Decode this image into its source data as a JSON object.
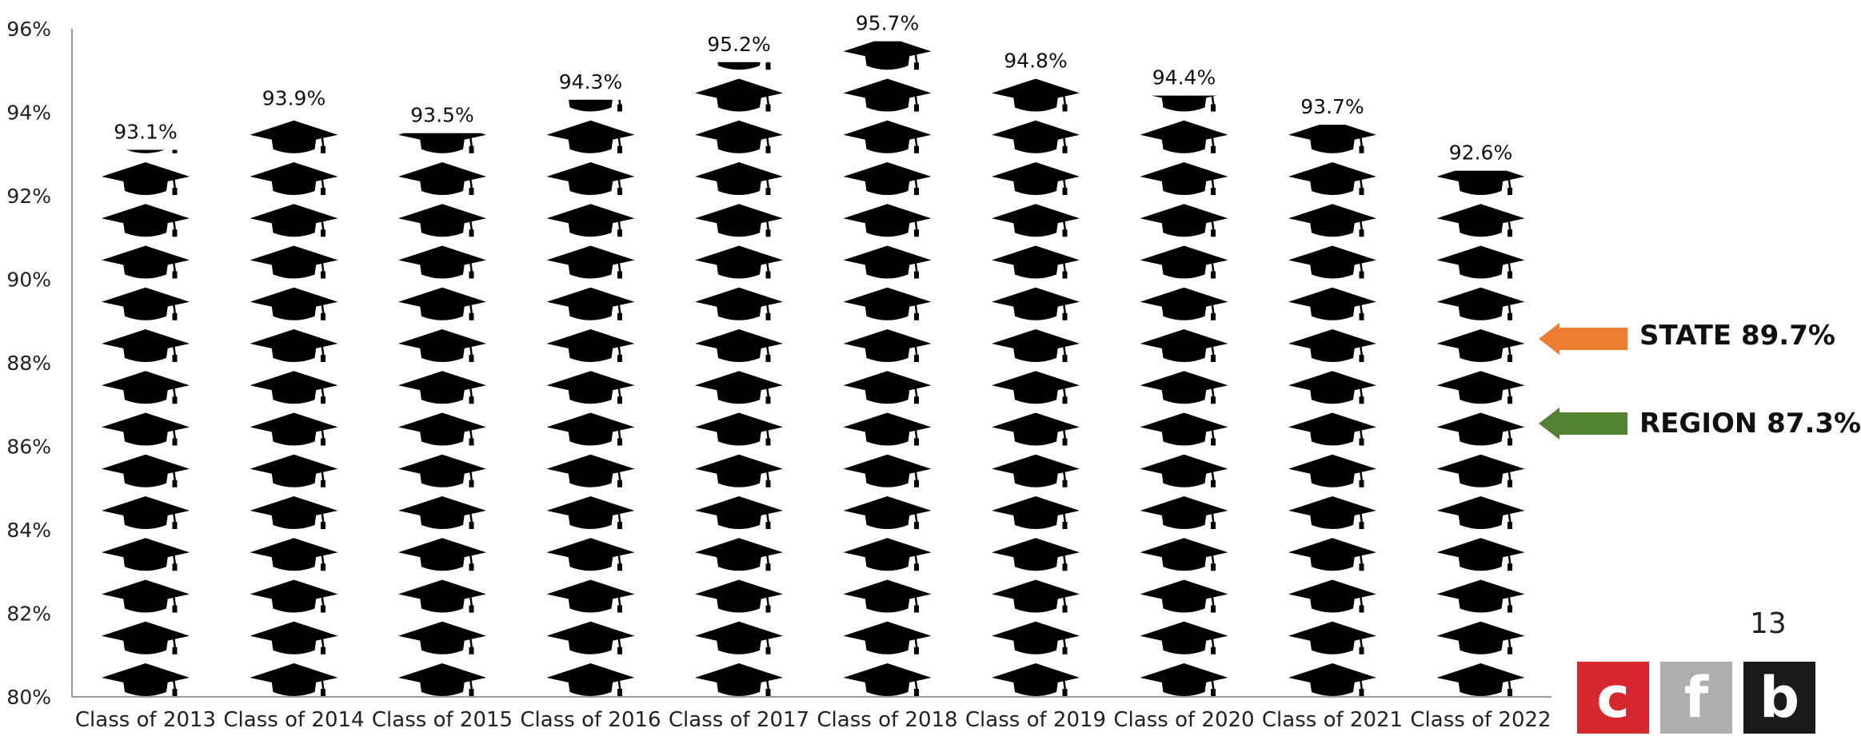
{
  "chart_data": {
    "type": "bar",
    "categories": [
      "Class of 2013",
      "Class of 2014",
      "Class of 2015",
      "Class of 2016",
      "Class of 2017",
      "Class of 2018",
      "Class of 2019",
      "Class of 2020",
      "Class of 2021",
      "Class of 2022"
    ],
    "values": [
      93.1,
      93.9,
      93.5,
      94.3,
      95.2,
      95.7,
      94.8,
      94.4,
      93.7,
      92.6
    ],
    "data_labels": [
      "93.1%",
      "93.9%",
      "93.5%",
      "94.3%",
      "95.2%",
      "95.7%",
      "94.8%",
      "94.4%",
      "93.7%",
      "92.6%"
    ],
    "ylim": [
      80,
      96
    ],
    "yticks": [
      80,
      82,
      84,
      86,
      88,
      90,
      92,
      94,
      96
    ],
    "ytick_labels": [
      "80%",
      "82%",
      "84%",
      "86%",
      "88%",
      "90%",
      "92%",
      "94%",
      "96%"
    ],
    "bar_icon": "graduation-cap-icon",
    "bar_color": "#000000",
    "references": [
      {
        "label": "STATE 89.7%",
        "value": 89.7,
        "color": "#ed7d31"
      },
      {
        "label": "REGION 87.3%",
        "value": 87.3,
        "color": "#548235"
      }
    ]
  },
  "page_number": "13",
  "logo": {
    "letters": [
      "c",
      "f",
      "b"
    ],
    "colors": [
      "#d7282f",
      "#aeaeae",
      "#1a1a1a"
    ]
  }
}
